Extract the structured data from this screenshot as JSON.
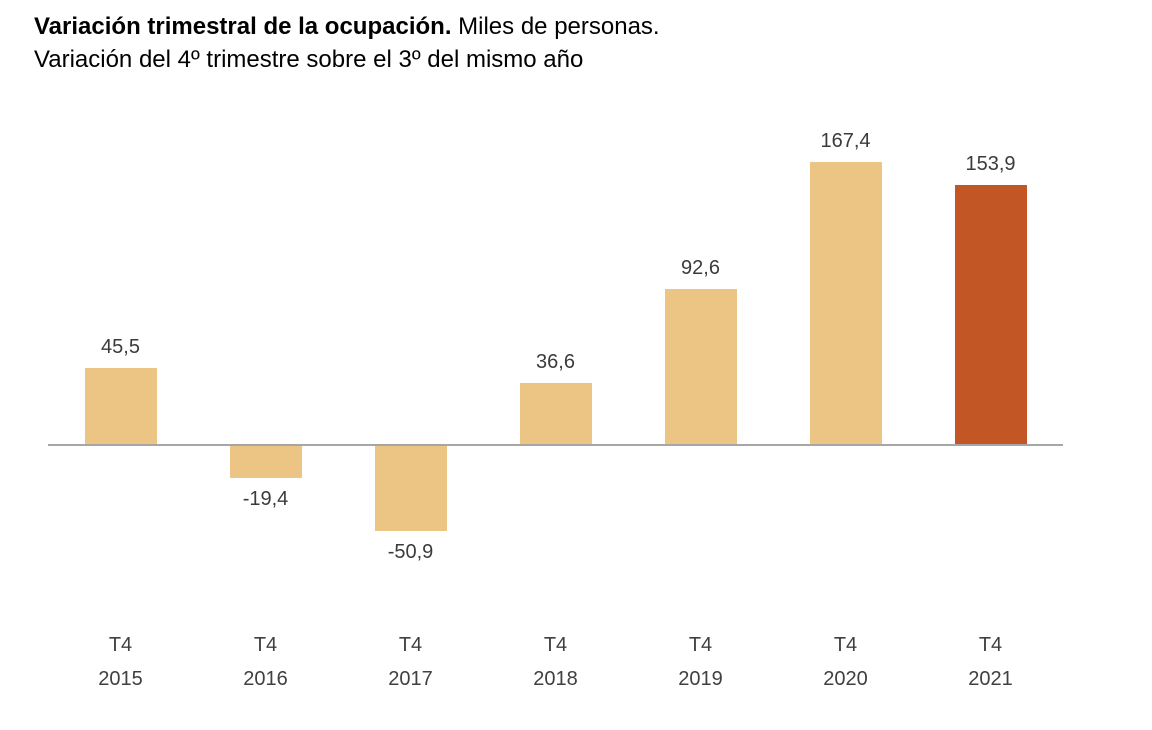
{
  "title": {
    "bold": "Variación trimestral de la ocupación.",
    "regular": " Miles de personas.",
    "line2": "Variación del 4º trimestre sobre el 3º del mismo año"
  },
  "chart_data": {
    "type": "bar",
    "categories": [
      "T4 2015",
      "T4 2016",
      "T4 2017",
      "T4 2018",
      "T4 2019",
      "T4 2020",
      "T4 2021"
    ],
    "tick_top": "T4",
    "years": [
      "2015",
      "2016",
      "2017",
      "2018",
      "2019",
      "2020",
      "2021"
    ],
    "values": [
      45.5,
      -19.4,
      -50.9,
      36.6,
      92.6,
      167.4,
      153.9
    ],
    "labels": [
      "45,5",
      "-19,4",
      "-50,9",
      "36,6",
      "92,6",
      "167,4",
      "153,9"
    ],
    "bar_color": "#ECC584",
    "highlight_color": "#C25625",
    "highlight_index": 6,
    "axis_color": "#A6A6A6",
    "label_color": "#3b3b3b",
    "title": "Variación trimestral de la ocupación. Miles de personas. Variación del 4º trimestre sobre el 3º del mismo año",
    "xlabel": "",
    "ylabel": "",
    "ylim": [
      -60,
      180
    ],
    "grid": false,
    "legend": false
  }
}
